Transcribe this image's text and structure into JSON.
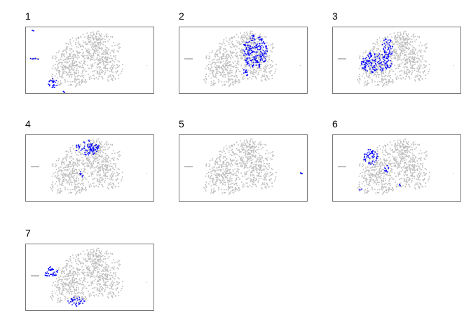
{
  "panels": [
    {
      "title": "1"
    },
    {
      "title": "2"
    },
    {
      "title": "3"
    },
    {
      "title": "4"
    },
    {
      "title": "5"
    },
    {
      "title": "6"
    },
    {
      "title": "7"
    }
  ]
}
